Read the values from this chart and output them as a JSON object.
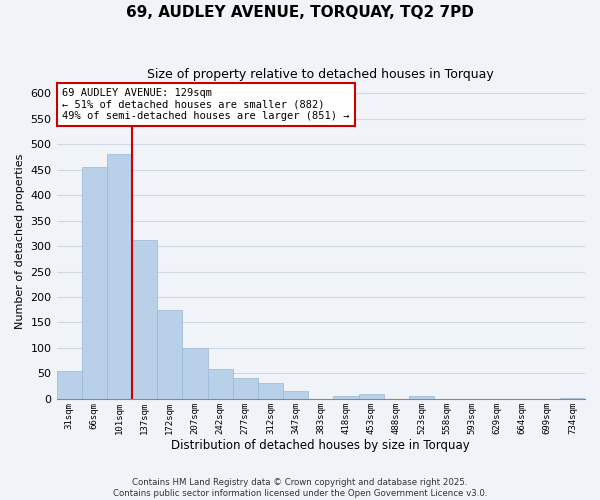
{
  "title": "69, AUDLEY AVENUE, TORQUAY, TQ2 7PD",
  "subtitle": "Size of property relative to detached houses in Torquay",
  "bar_labels": [
    "31sqm",
    "66sqm",
    "101sqm",
    "137sqm",
    "172sqm",
    "207sqm",
    "242sqm",
    "277sqm",
    "312sqm",
    "347sqm",
    "383sqm",
    "418sqm",
    "453sqm",
    "488sqm",
    "523sqm",
    "558sqm",
    "593sqm",
    "629sqm",
    "664sqm",
    "699sqm",
    "734sqm"
  ],
  "bar_values": [
    55,
    455,
    480,
    312,
    175,
    100,
    58,
    42,
    32,
    16,
    0,
    6,
    9,
    0,
    6,
    0,
    0,
    0,
    0,
    0,
    2
  ],
  "bar_color": "#b8d0e8",
  "bar_edge_color": "#9ab8d8",
  "vline_color": "#cc0000",
  "xlabel": "Distribution of detached houses by size in Torquay",
  "ylabel": "Number of detached properties",
  "ylim": [
    0,
    620
  ],
  "yticks": [
    0,
    50,
    100,
    150,
    200,
    250,
    300,
    350,
    400,
    450,
    500,
    550,
    600
  ],
  "annotation_title": "69 AUDLEY AVENUE: 129sqm",
  "annotation_line1": "← 51% of detached houses are smaller (882)",
  "annotation_line2": "49% of semi-detached houses are larger (851) →",
  "annotation_box_color": "#ffffff",
  "annotation_box_edge": "#cc0000",
  "grid_color": "#d0d8e4",
  "background_color": "#f0f4f8",
  "footer_line1": "Contains HM Land Registry data © Crown copyright and database right 2025.",
  "footer_line2": "Contains public sector information licensed under the Open Government Licence v3.0."
}
